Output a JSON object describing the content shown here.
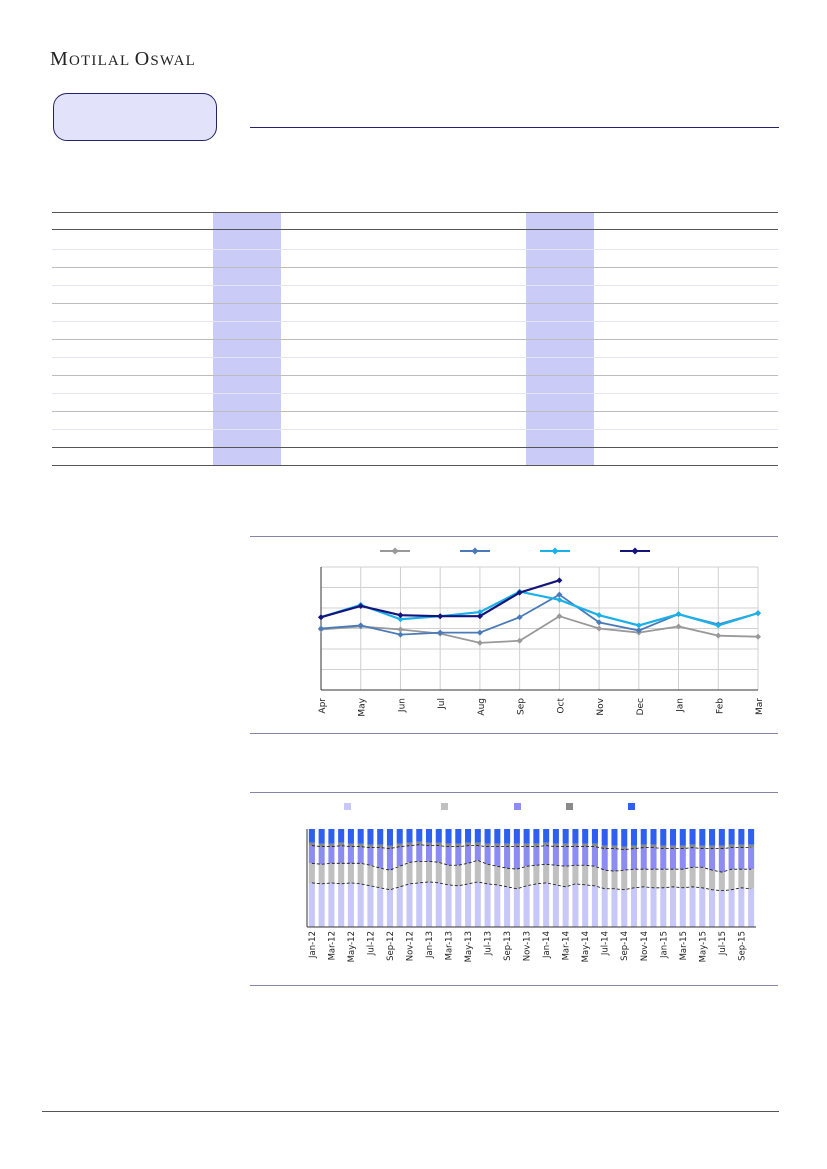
{
  "brand": {
    "logo_text_1": "Motilal",
    "logo_text_2": "Oswal"
  },
  "chart_data": [
    {
      "type": "line",
      "categories": [
        "Apr",
        "May",
        "Jun",
        "Jul",
        "Aug",
        "Sep",
        "Oct",
        "Nov",
        "Dec",
        "Jan",
        "Feb",
        "Mar"
      ],
      "ylim": [
        0,
        12
      ],
      "grid": true,
      "legend": "top",
      "series": [
        {
          "color": "#999999",
          "values": [
            5.9,
            6.2,
            5.9,
            5.5,
            4.6,
            4.8,
            7.2,
            6.0,
            5.6,
            6.2,
            5.3,
            5.2
          ]
        },
        {
          "color": "#4a7ab8",
          "values": [
            6.0,
            6.3,
            5.4,
            5.6,
            5.6,
            7.1,
            9.3,
            6.6,
            5.8,
            7.4,
            6.4,
            7.5
          ]
        },
        {
          "color": "#1ab0e8",
          "values": [
            7.1,
            8.3,
            6.9,
            7.2,
            7.6,
            9.6,
            8.8,
            7.3,
            6.3,
            7.4,
            6.3,
            7.5
          ]
        },
        {
          "color": "#14147a",
          "values": [
            7.1,
            8.2,
            7.3,
            7.2,
            7.2,
            9.5,
            10.7,
            null,
            null,
            null,
            null,
            null
          ]
        }
      ]
    },
    {
      "type": "bar",
      "stacked": true,
      "categories": [
        "Jan-12",
        "Feb-12",
        "Mar-12",
        "Apr-12",
        "May-12",
        "Jun-12",
        "Jul-12",
        "Aug-12",
        "Sep-12",
        "Oct-12",
        "Nov-12",
        "Dec-12",
        "Jan-13",
        "Feb-13",
        "Mar-13",
        "Apr-13",
        "May-13",
        "Jun-13",
        "Jul-13",
        "Aug-13",
        "Sep-13",
        "Oct-13",
        "Nov-13",
        "Dec-13",
        "Jan-14",
        "Feb-14",
        "Mar-14",
        "Apr-14",
        "May-14",
        "Jun-14",
        "Jul-14",
        "Aug-14",
        "Sep-14",
        "Oct-14",
        "Nov-14",
        "Dec-14",
        "Jan-15",
        "Feb-15",
        "Mar-15",
        "Apr-15",
        "May-15",
        "Jun-15",
        "Jul-15",
        "Aug-15",
        "Sep-15",
        "Oct-15"
      ],
      "tick_labels": [
        "Jan-12",
        "Mar-12",
        "May-12",
        "Jul-12",
        "Sep-12",
        "Nov-12",
        "Jan-13",
        "Mar-13",
        "May-13",
        "Jul-13",
        "Sep-13",
        "Nov-13",
        "Jan-14",
        "Mar-14",
        "May-14",
        "Jul-14",
        "Sep-14",
        "Nov-14",
        "Jan-15",
        "Mar-15",
        "May-15",
        "Jul-15",
        "Sep-15"
      ],
      "ylim": [
        0,
        100
      ],
      "legend": "top",
      "series_colors": [
        "#c8c8f8",
        "#c0c0c0",
        "#8c8cf2",
        "#8a8a8a",
        "#2f5ff0"
      ],
      "series": [
        {
          "color": "#c8c8f8",
          "values": [
            45,
            44,
            45,
            44,
            45,
            44,
            42,
            40,
            38,
            41,
            44,
            45,
            46,
            45,
            43,
            42,
            44,
            46,
            44,
            43,
            41,
            39,
            42,
            44,
            45,
            43,
            41,
            44,
            43,
            42,
            39,
            39,
            38,
            40,
            41,
            40,
            40,
            41,
            40,
            41,
            40,
            38,
            37,
            38,
            40,
            39
          ]
        },
        {
          "color": "#c0c0c0",
          "values": [
            20,
            20,
            20,
            21,
            20,
            21,
            21,
            20,
            20,
            21,
            22,
            22,
            21,
            21,
            20,
            21,
            21,
            22,
            20,
            19,
            19,
            20,
            20,
            19,
            19,
            20,
            21,
            19,
            20,
            20,
            19,
            18,
            20,
            19,
            18,
            19,
            19,
            18,
            19,
            20,
            21,
            20,
            19,
            21,
            19,
            20
          ]
        },
        {
          "color": "#8c8cf2",
          "values": [
            18,
            18,
            17,
            18,
            17,
            17,
            18,
            21,
            22,
            20,
            17,
            17,
            16,
            17,
            19,
            19,
            18,
            15,
            18,
            20,
            22,
            23,
            20,
            19,
            19,
            19,
            20,
            19,
            19,
            20,
            22,
            23,
            21,
            21,
            22,
            22,
            21,
            21,
            21,
            20,
            19,
            22,
            24,
            22,
            22,
            22
          ]
        },
        {
          "color": "#8a8a8a",
          "values": [
            3,
            3,
            3,
            3,
            3,
            3,
            3,
            3,
            3,
            3,
            3,
            3,
            3,
            3,
            3,
            3,
            3,
            3,
            3,
            3,
            3,
            3,
            3,
            3,
            3,
            3,
            3,
            3,
            3,
            3,
            3,
            3,
            3,
            3,
            3,
            3,
            3,
            3,
            3,
            3,
            3,
            3,
            3,
            3,
            3,
            3
          ]
        },
        {
          "color": "#2f5ff0",
          "values": [
            14,
            15,
            15,
            14,
            15,
            15,
            16,
            16,
            17,
            15,
            14,
            13,
            14,
            14,
            15,
            15,
            14,
            14,
            15,
            15,
            15,
            15,
            15,
            15,
            14,
            15,
            15,
            15,
            15,
            15,
            17,
            17,
            18,
            17,
            16,
            16,
            17,
            17,
            17,
            16,
            17,
            17,
            17,
            16,
            16,
            16
          ]
        }
      ]
    }
  ]
}
